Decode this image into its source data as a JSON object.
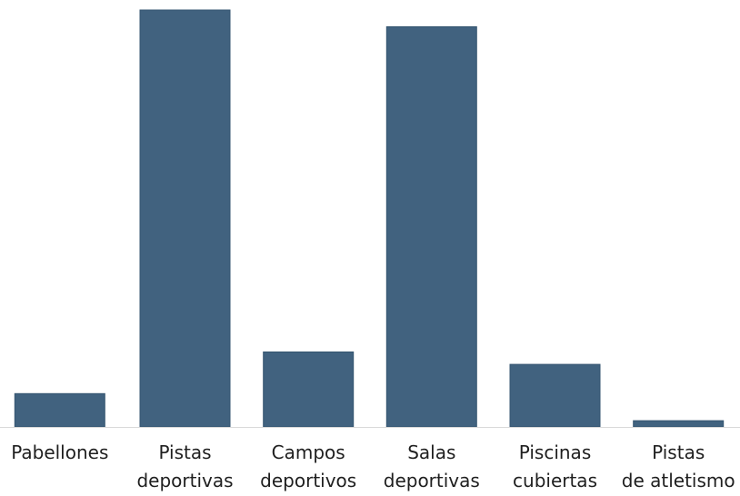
{
  "chart_data": {
    "type": "bar",
    "categories": [
      "Pabellones",
      "Pistas deportivas",
      "Campos deportivos",
      "Salas deportivas",
      "Piscinas cubiertas",
      "Pistas de atletismo"
    ],
    "values": [
      8,
      100,
      18,
      96,
      15,
      1.5
    ],
    "ylim": [
      0,
      100
    ],
    "grid": false,
    "legend": false,
    "colors": {
      "bar": "#41627F",
      "bar_edge": "#355570",
      "axis": "#D9D9D9",
      "text": "#1F1F1F"
    }
  }
}
